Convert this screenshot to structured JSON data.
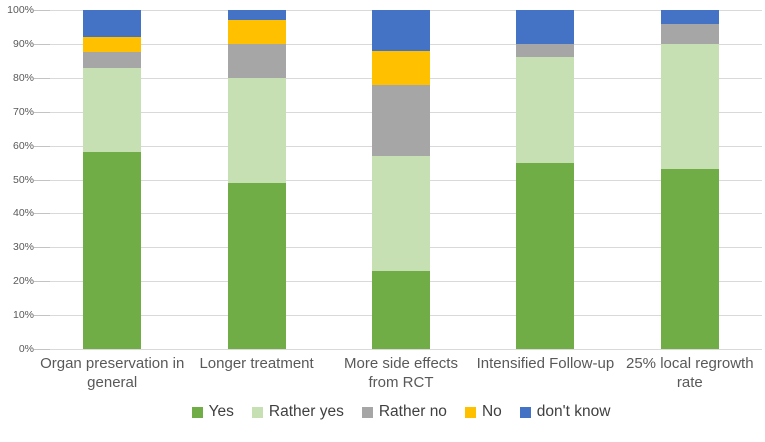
{
  "chart_data": {
    "type": "bar",
    "subtype": "stacked-100-percent",
    "title": "",
    "xlabel": "",
    "ylabel": "",
    "ylim": [
      0,
      100
    ],
    "grid": true,
    "legend_position": "bottom",
    "background_color": "#FFFFFF",
    "gridline_color": "#D9D9D9",
    "axis_text_color": "#595959",
    "legend_text_color": "#404040",
    "categories": [
      "Organ preservation in general",
      "Longer treatment",
      "More side effects from RCT",
      "Intensified Follow-up",
      "25% local regrowth rate"
    ],
    "series": [
      {
        "name": "Yes",
        "color": "#70AD47",
        "values": [
          58,
          49,
          23,
          55,
          53
        ]
      },
      {
        "name": "Rather yes",
        "color": "#C6E0B4",
        "values": [
          25,
          31,
          34,
          31,
          37
        ]
      },
      {
        "name": "Rather no",
        "color": "#A6A6A6",
        "values": [
          4.5,
          10,
          21,
          4,
          6
        ]
      },
      {
        "name": "No",
        "color": "#FFC000",
        "values": [
          4.5,
          7,
          10,
          0,
          0
        ]
      },
      {
        "name": "don't know",
        "color": "#4472C4",
        "values": [
          8,
          3,
          12,
          10,
          4
        ]
      }
    ],
    "y_ticks": [
      "100%",
      "90%",
      "80%",
      "70%",
      "60%",
      "50%",
      "40%",
      "30%",
      "20%",
      "10%",
      "0%"
    ]
  }
}
